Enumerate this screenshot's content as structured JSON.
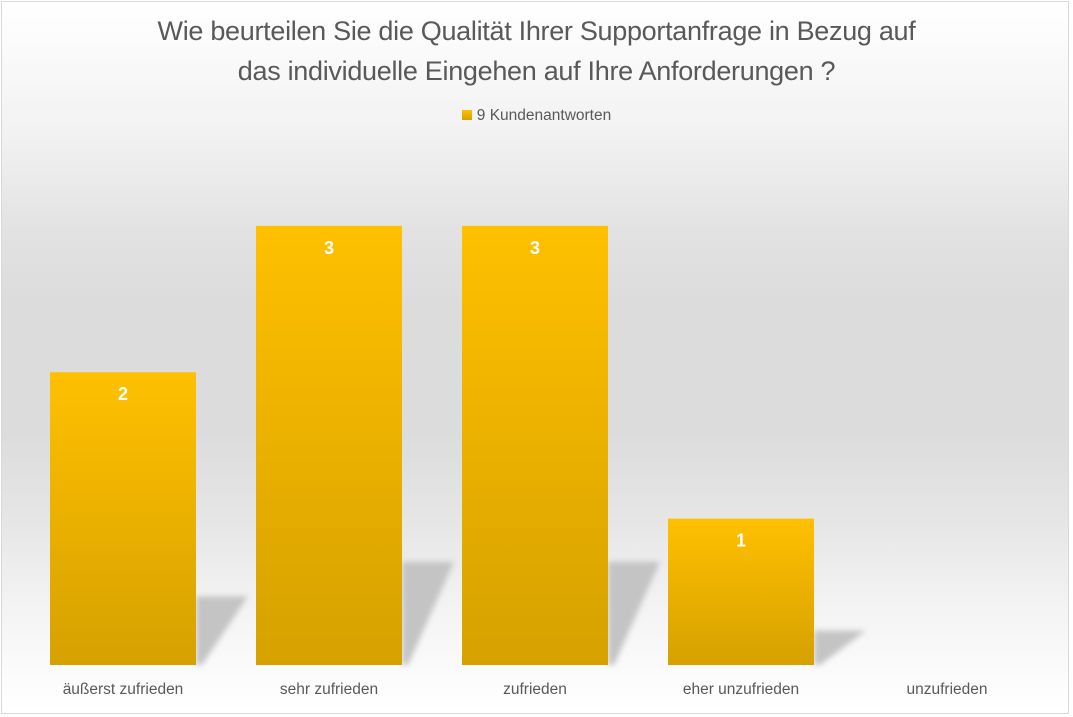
{
  "chart_data": {
    "type": "bar",
    "title": "Wie beurteilen Sie die Qualität Ihrer Supportanfrage in Bezug auf das individuelle Eingehen auf Ihre Anforderungen ?",
    "title_lines": [
      "Wie beurteilen Sie die Qualität Ihrer Supportanfrage in Bezug auf",
      "das individuelle Eingehen auf Ihre Anforderungen ?"
    ],
    "xlabel": "",
    "ylabel": "",
    "categories": [
      "äußerst zufrieden",
      "sehr zufrieden",
      "zufrieden",
      "eher unzufrieden",
      "unzufrieden"
    ],
    "series": [
      {
        "name": "9 Kundenantworten",
        "values": [
          2,
          3,
          3,
          1,
          0
        ],
        "color": "#ffc000"
      }
    ],
    "data_labels": [
      "2",
      "3",
      "3",
      "1",
      ""
    ],
    "ylim": [
      0,
      3.6
    ],
    "grid": false,
    "y_axis_visible": false,
    "legend": {
      "position": "top",
      "entries": [
        "9 Kundenantworten"
      ]
    }
  },
  "colors": {
    "bar_top": "#ffc000",
    "bar_bottom": "#d6a100",
    "text": "#595959",
    "data_label": "#ffffff",
    "shadow": "#c4c4c4"
  }
}
